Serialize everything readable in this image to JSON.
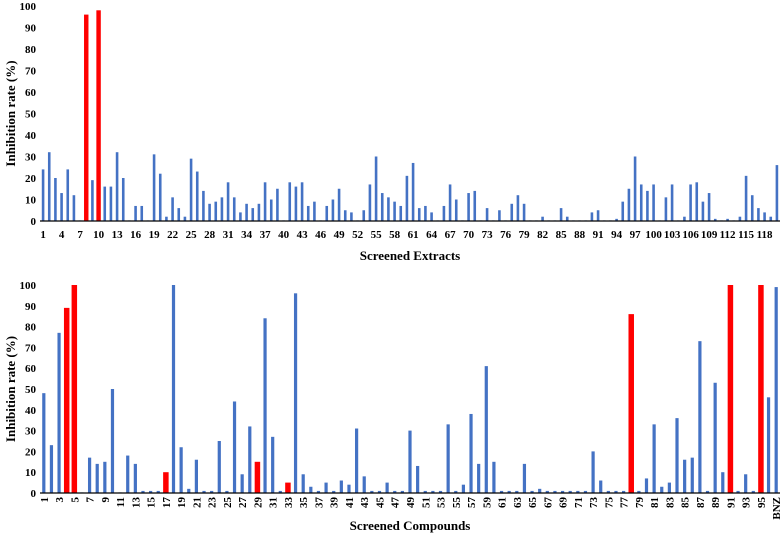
{
  "colors": {
    "normal": "#4472C4",
    "highlight": "#FF0000",
    "axis": "#000000",
    "background": "#FFFFFF"
  },
  "chart_data": [
    {
      "type": "bar",
      "xlabel": "Screened Extracts",
      "ylabel": "Inhibition rate (%)",
      "ylim": [
        0,
        100
      ],
      "yticks": [
        0,
        10,
        20,
        30,
        40,
        50,
        60,
        70,
        80,
        90,
        100
      ],
      "grid": false,
      "legend": "none",
      "tick_labels": [
        "1",
        "4",
        "7",
        "10",
        "13",
        "16",
        "19",
        "22",
        "25",
        "28",
        "31",
        "34",
        "37",
        "40",
        "43",
        "46",
        "49",
        "52",
        "55",
        "58",
        "61",
        "64",
        "67",
        "70",
        "73",
        "76",
        "79",
        "82",
        "85",
        "88",
        "91",
        "94",
        "97",
        "100",
        "103",
        "106",
        "109",
        "112",
        "115",
        "118"
      ],
      "highlighted": [
        8,
        10
      ],
      "categories": [
        "1",
        "2",
        "3",
        "4",
        "5",
        "6",
        "7",
        "8",
        "9",
        "10",
        "11",
        "12",
        "13",
        "14",
        "15",
        "16",
        "17",
        "18",
        "19",
        "20",
        "21",
        "22",
        "23",
        "24",
        "25",
        "26",
        "27",
        "28",
        "29",
        "30",
        "31",
        "32",
        "33",
        "34",
        "35",
        "36",
        "37",
        "38",
        "39",
        "40",
        "41",
        "42",
        "43",
        "44",
        "45",
        "46",
        "47",
        "48",
        "49",
        "50",
        "51",
        "52",
        "53",
        "54",
        "55",
        "56",
        "57",
        "58",
        "59",
        "60",
        "61",
        "62",
        "63",
        "64",
        "65",
        "66",
        "67",
        "68",
        "69",
        "70",
        "71",
        "72",
        "73",
        "74",
        "75",
        "76",
        "77",
        "78",
        "79",
        "80",
        "81",
        "82",
        "83",
        "84",
        "85",
        "86",
        "87",
        "88",
        "89",
        "90",
        "91",
        "92",
        "93",
        "94",
        "95",
        "96",
        "97",
        "98",
        "99",
        "100",
        "101",
        "102",
        "103",
        "104",
        "105",
        "106",
        "107",
        "108",
        "109",
        "110",
        "111",
        "112",
        "113",
        "114",
        "115",
        "116",
        "117",
        "118",
        "119",
        "120"
      ],
      "values": [
        24,
        32,
        20,
        13,
        24,
        12,
        0,
        96,
        19,
        98,
        16,
        16,
        32,
        20,
        0,
        7,
        7,
        0,
        31,
        22,
        2,
        11,
        6,
        2,
        29,
        23,
        14,
        8,
        9,
        11,
        18,
        11,
        4,
        8,
        6,
        8,
        18,
        10,
        15,
        0,
        18,
        16,
        18,
        7,
        9,
        0,
        7,
        10,
        15,
        5,
        4,
        0,
        5,
        17,
        30,
        13,
        11,
        9,
        7,
        21,
        27,
        6,
        7,
        4,
        0,
        7,
        17,
        10,
        0,
        13,
        14,
        0,
        6,
        0,
        5,
        0,
        8,
        12,
        8,
        0,
        0,
        2,
        0,
        0,
        6,
        2,
        0,
        0,
        0,
        4,
        5,
        0,
        0,
        1,
        9,
        15,
        30,
        17,
        14,
        17,
        0,
        11,
        17,
        0,
        2,
        17,
        18,
        9,
        13,
        1,
        0,
        1,
        0,
        2,
        21,
        12,
        6,
        4,
        2,
        26
      ]
    },
    {
      "type": "bar",
      "xlabel": "Screened Compounds",
      "ylabel": "Inhibition rate (%)",
      "ylim": [
        0,
        100
      ],
      "yticks": [
        0,
        10,
        20,
        30,
        40,
        50,
        60,
        70,
        80,
        90,
        100
      ],
      "grid": false,
      "legend": "none",
      "tick_labels": [
        "1",
        "3",
        "5",
        "7",
        "9",
        "11",
        "13",
        "15",
        "17",
        "19",
        "21",
        "23",
        "25",
        "27",
        "29",
        "31",
        "33",
        "35",
        "37",
        "39",
        "41",
        "43",
        "45",
        "47",
        "49",
        "51",
        "53",
        "55",
        "57",
        "59",
        "61",
        "63",
        "65",
        "67",
        "69",
        "71",
        "73",
        "75",
        "77",
        "79",
        "81",
        "83",
        "85",
        "87",
        "89",
        "91",
        "93",
        "95",
        "BNZ"
      ],
      "highlighted": [
        4,
        5,
        17,
        29,
        33,
        78,
        91,
        95
      ],
      "categories": [
        "1",
        "2",
        "3",
        "4",
        "5",
        "6",
        "7",
        "8",
        "9",
        "10",
        "11",
        "12",
        "13",
        "14",
        "15",
        "16",
        "17",
        "18",
        "19",
        "20",
        "21",
        "22",
        "23",
        "24",
        "25",
        "26",
        "27",
        "28",
        "29",
        "30",
        "31",
        "32",
        "33",
        "34",
        "35",
        "36",
        "37",
        "38",
        "39",
        "40",
        "41",
        "42",
        "43",
        "44",
        "45",
        "46",
        "47",
        "48",
        "49",
        "50",
        "51",
        "52",
        "53",
        "54",
        "55",
        "56",
        "57",
        "58",
        "59",
        "60",
        "61",
        "62",
        "63",
        "64",
        "65",
        "66",
        "67",
        "68",
        "69",
        "70",
        "71",
        "72",
        "73",
        "74",
        "75",
        "76",
        "77",
        "78",
        "79",
        "80",
        "81",
        "82",
        "83",
        "84",
        "85",
        "86",
        "87",
        "88",
        "89",
        "90",
        "91",
        "92",
        "93",
        "94",
        "95",
        "96",
        "BNZ"
      ],
      "values": [
        48,
        23,
        77,
        89,
        100,
        0,
        17,
        14,
        15,
        50,
        0,
        18,
        14,
        1,
        1,
        1,
        10,
        100,
        22,
        2,
        16,
        1,
        1,
        25,
        1,
        44,
        9,
        32,
        15,
        84,
        27,
        1,
        5,
        96,
        9,
        3,
        1,
        5,
        1,
        6,
        4,
        31,
        8,
        1,
        1,
        5,
        1,
        1,
        30,
        13,
        1,
        1,
        1,
        33,
        1,
        4,
        38,
        14,
        61,
        15,
        1,
        1,
        1,
        14,
        1,
        2,
        1,
        1,
        1,
        1,
        1,
        1,
        20,
        6,
        1,
        1,
        1,
        86,
        1,
        7,
        33,
        3,
        5,
        36,
        16,
        17,
        73,
        1,
        53,
        10,
        100,
        1,
        9,
        1,
        100,
        46,
        99
      ]
    }
  ]
}
